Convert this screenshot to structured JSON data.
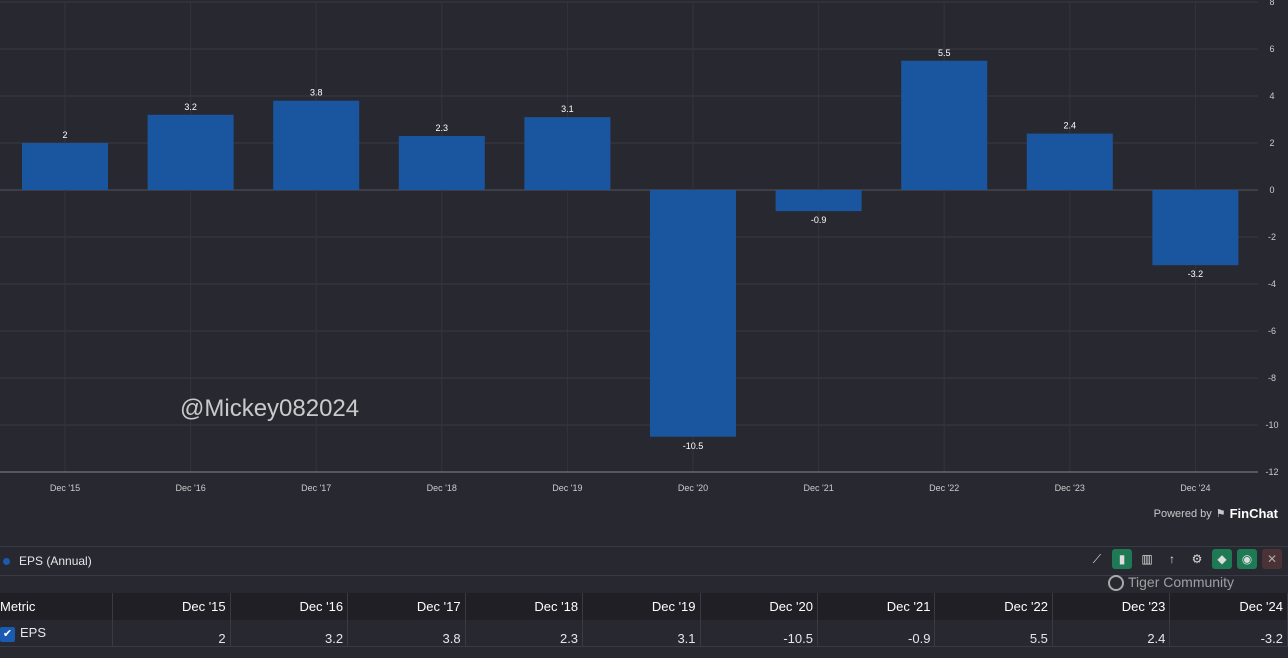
{
  "chart_data": {
    "type": "bar",
    "title": "EPS (Annual)",
    "categories": [
      "Dec '15",
      "Dec '16",
      "Dec '17",
      "Dec '18",
      "Dec '19",
      "Dec '20",
      "Dec '21",
      "Dec '22",
      "Dec '23",
      "Dec '24"
    ],
    "values": [
      2,
      3.2,
      3.8,
      2.3,
      3.1,
      -10.5,
      -0.9,
      5.5,
      2.4,
      -3.2
    ],
    "ylim": [
      -12,
      8
    ],
    "yticks": [
      8,
      6,
      4,
      2,
      0,
      -2,
      -4,
      -6,
      -8,
      -10,
      -12
    ],
    "bar_color": "#1a56a0",
    "grid": true,
    "legend": "bottom-left"
  },
  "branding": {
    "powered_by": "Powered by",
    "brand": "FinChat"
  },
  "legend": {
    "label": "EPS (Annual)"
  },
  "toolbar": [
    "chart-type-line",
    "chart-type-bar",
    "chart-type-bar-alt",
    "sort",
    "settings",
    "tag",
    "visibility",
    "close"
  ],
  "table": {
    "header": "Metric",
    "columns": [
      "Dec '15",
      "Dec '16",
      "Dec '17",
      "Dec '18",
      "Dec '19",
      "Dec '20",
      "Dec '21",
      "Dec '22",
      "Dec '23",
      "Dec '24"
    ],
    "rows": [
      {
        "metric": "EPS",
        "values": [
          "2",
          "3.2",
          "3.8",
          "2.3",
          "3.1",
          "-10.5",
          "-0.9",
          "5.5",
          "2.4",
          "-3.2"
        ]
      }
    ]
  },
  "watermark": {
    "community": "Tiger Community",
    "handle": "@Mickey082024"
  }
}
